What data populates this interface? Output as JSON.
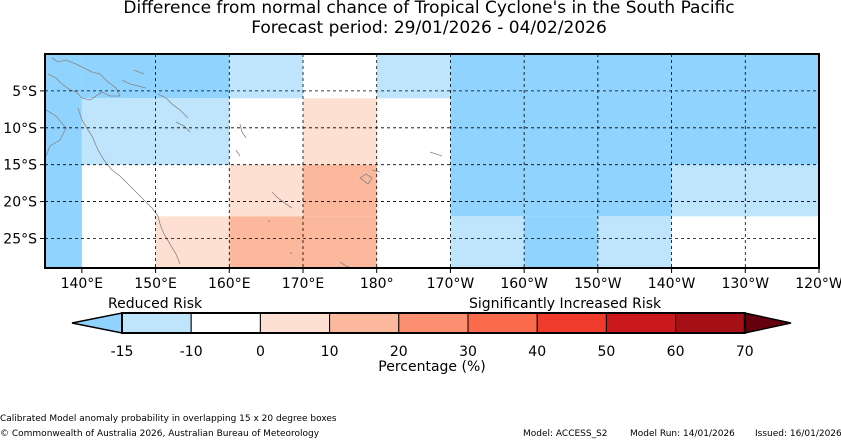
{
  "title": "Difference from normal chance of Tropical Cyclone's in the South Pacific",
  "subtitle": "Forecast period: 29/01/2026 - 04/02/2026",
  "map": {
    "lon_range": [
      135,
      240
    ],
    "lat_range": [
      -29,
      0
    ],
    "x_ticks": [
      {
        "value": 140,
        "label": "140°E"
      },
      {
        "value": 150,
        "label": "150°E"
      },
      {
        "value": 160,
        "label": "160°E"
      },
      {
        "value": 170,
        "label": "170°E"
      },
      {
        "value": 180,
        "label": "180°"
      },
      {
        "value": 190,
        "label": "170°W"
      },
      {
        "value": 200,
        "label": "160°W"
      },
      {
        "value": 210,
        "label": "150°W"
      },
      {
        "value": 220,
        "label": "140°W"
      },
      {
        "value": 230,
        "label": "130°W"
      },
      {
        "value": 240,
        "label": "120°W"
      }
    ],
    "y_ticks": [
      {
        "value": -5,
        "label": "5°S"
      },
      {
        "value": -10,
        "label": "10°S"
      },
      {
        "value": -15,
        "label": "15°S"
      },
      {
        "value": -20,
        "label": "20°S"
      },
      {
        "value": -25,
        "label": "25°S"
      }
    ],
    "gridlines": true,
    "colors": {
      "cat_n2": "#8fd3fe",
      "cat_n1": "#bfe5fc",
      "cat_p1": "#fee0d2",
      "cat_p3": "#fcb89c"
    },
    "cells": [
      {
        "lon": [
          135,
          140
        ],
        "lat": [
          -29,
          0
        ],
        "cat": "cat_n2"
      },
      {
        "lon": [
          140,
          160
        ],
        "lat": [
          -6,
          0
        ],
        "cat": "cat_n2"
      },
      {
        "lon": [
          140,
          160
        ],
        "lat": [
          -15,
          -6
        ],
        "cat": "cat_n1"
      },
      {
        "lon": [
          160,
          170
        ],
        "lat": [
          -6,
          0
        ],
        "cat": "cat_n1"
      },
      {
        "lon": [
          170,
          180
        ],
        "lat": [
          -15,
          -6
        ],
        "cat": "cat_p1"
      },
      {
        "lon": [
          180,
          190
        ],
        "lat": [
          -6,
          0
        ],
        "cat": "cat_n1"
      },
      {
        "lon": [
          190,
          240
        ],
        "lat": [
          -15,
          0
        ],
        "cat": "cat_n2"
      },
      {
        "lon": [
          160,
          170
        ],
        "lat": [
          -22,
          -15
        ],
        "cat": "cat_p1"
      },
      {
        "lon": [
          170,
          180
        ],
        "lat": [
          -22,
          -15
        ],
        "cat": "cat_p3"
      },
      {
        "lon": [
          150,
          160
        ],
        "lat": [
          -29,
          -22
        ],
        "cat": "cat_p1"
      },
      {
        "lon": [
          160,
          180
        ],
        "lat": [
          -29,
          -22
        ],
        "cat": "cat_p3"
      },
      {
        "lon": [
          190,
          220
        ],
        "lat": [
          -22,
          -15
        ],
        "cat": "cat_n2"
      },
      {
        "lon": [
          220,
          240
        ],
        "lat": [
          -22,
          -15
        ],
        "cat": "cat_n1"
      },
      {
        "lon": [
          190,
          200
        ],
        "lat": [
          -29,
          -22
        ],
        "cat": "cat_n1"
      },
      {
        "lon": [
          200,
          210
        ],
        "lat": [
          -29,
          -22
        ],
        "cat": "cat_n2"
      },
      {
        "lon": [
          210,
          220
        ],
        "lat": [
          -29,
          -22
        ],
        "cat": "cat_n1"
      }
    ]
  },
  "legend": {
    "label_left": "Reduced Risk",
    "label_right": "Significantly Increased Risk",
    "ticks": [
      "-15",
      "-10",
      "0",
      "10",
      "20",
      "30",
      "40",
      "50",
      "60",
      "70"
    ],
    "low_extend_color": "#8fd3fe",
    "high_extend_color": "#67000d",
    "colors": [
      "#bfe5fc",
      "#ffffff",
      "#fee0d2",
      "#fcb89c",
      "#fc8f6f",
      "#fb6a4a",
      "#ef3b2c",
      "#cb181d",
      "#a50f15"
    ],
    "axis_label": "Percentage (%)"
  },
  "footer": {
    "note": "Calibrated Model anomaly probability in overlapping 15 x 20 degree boxes",
    "copyright": "© Commonwealth of Australia 2026, Australian Bureau of Meteorology",
    "model": "Model: ACCESS_S2",
    "model_run": "Model Run: 14/01/2026",
    "issued": "Issued: 16/01/2026"
  }
}
